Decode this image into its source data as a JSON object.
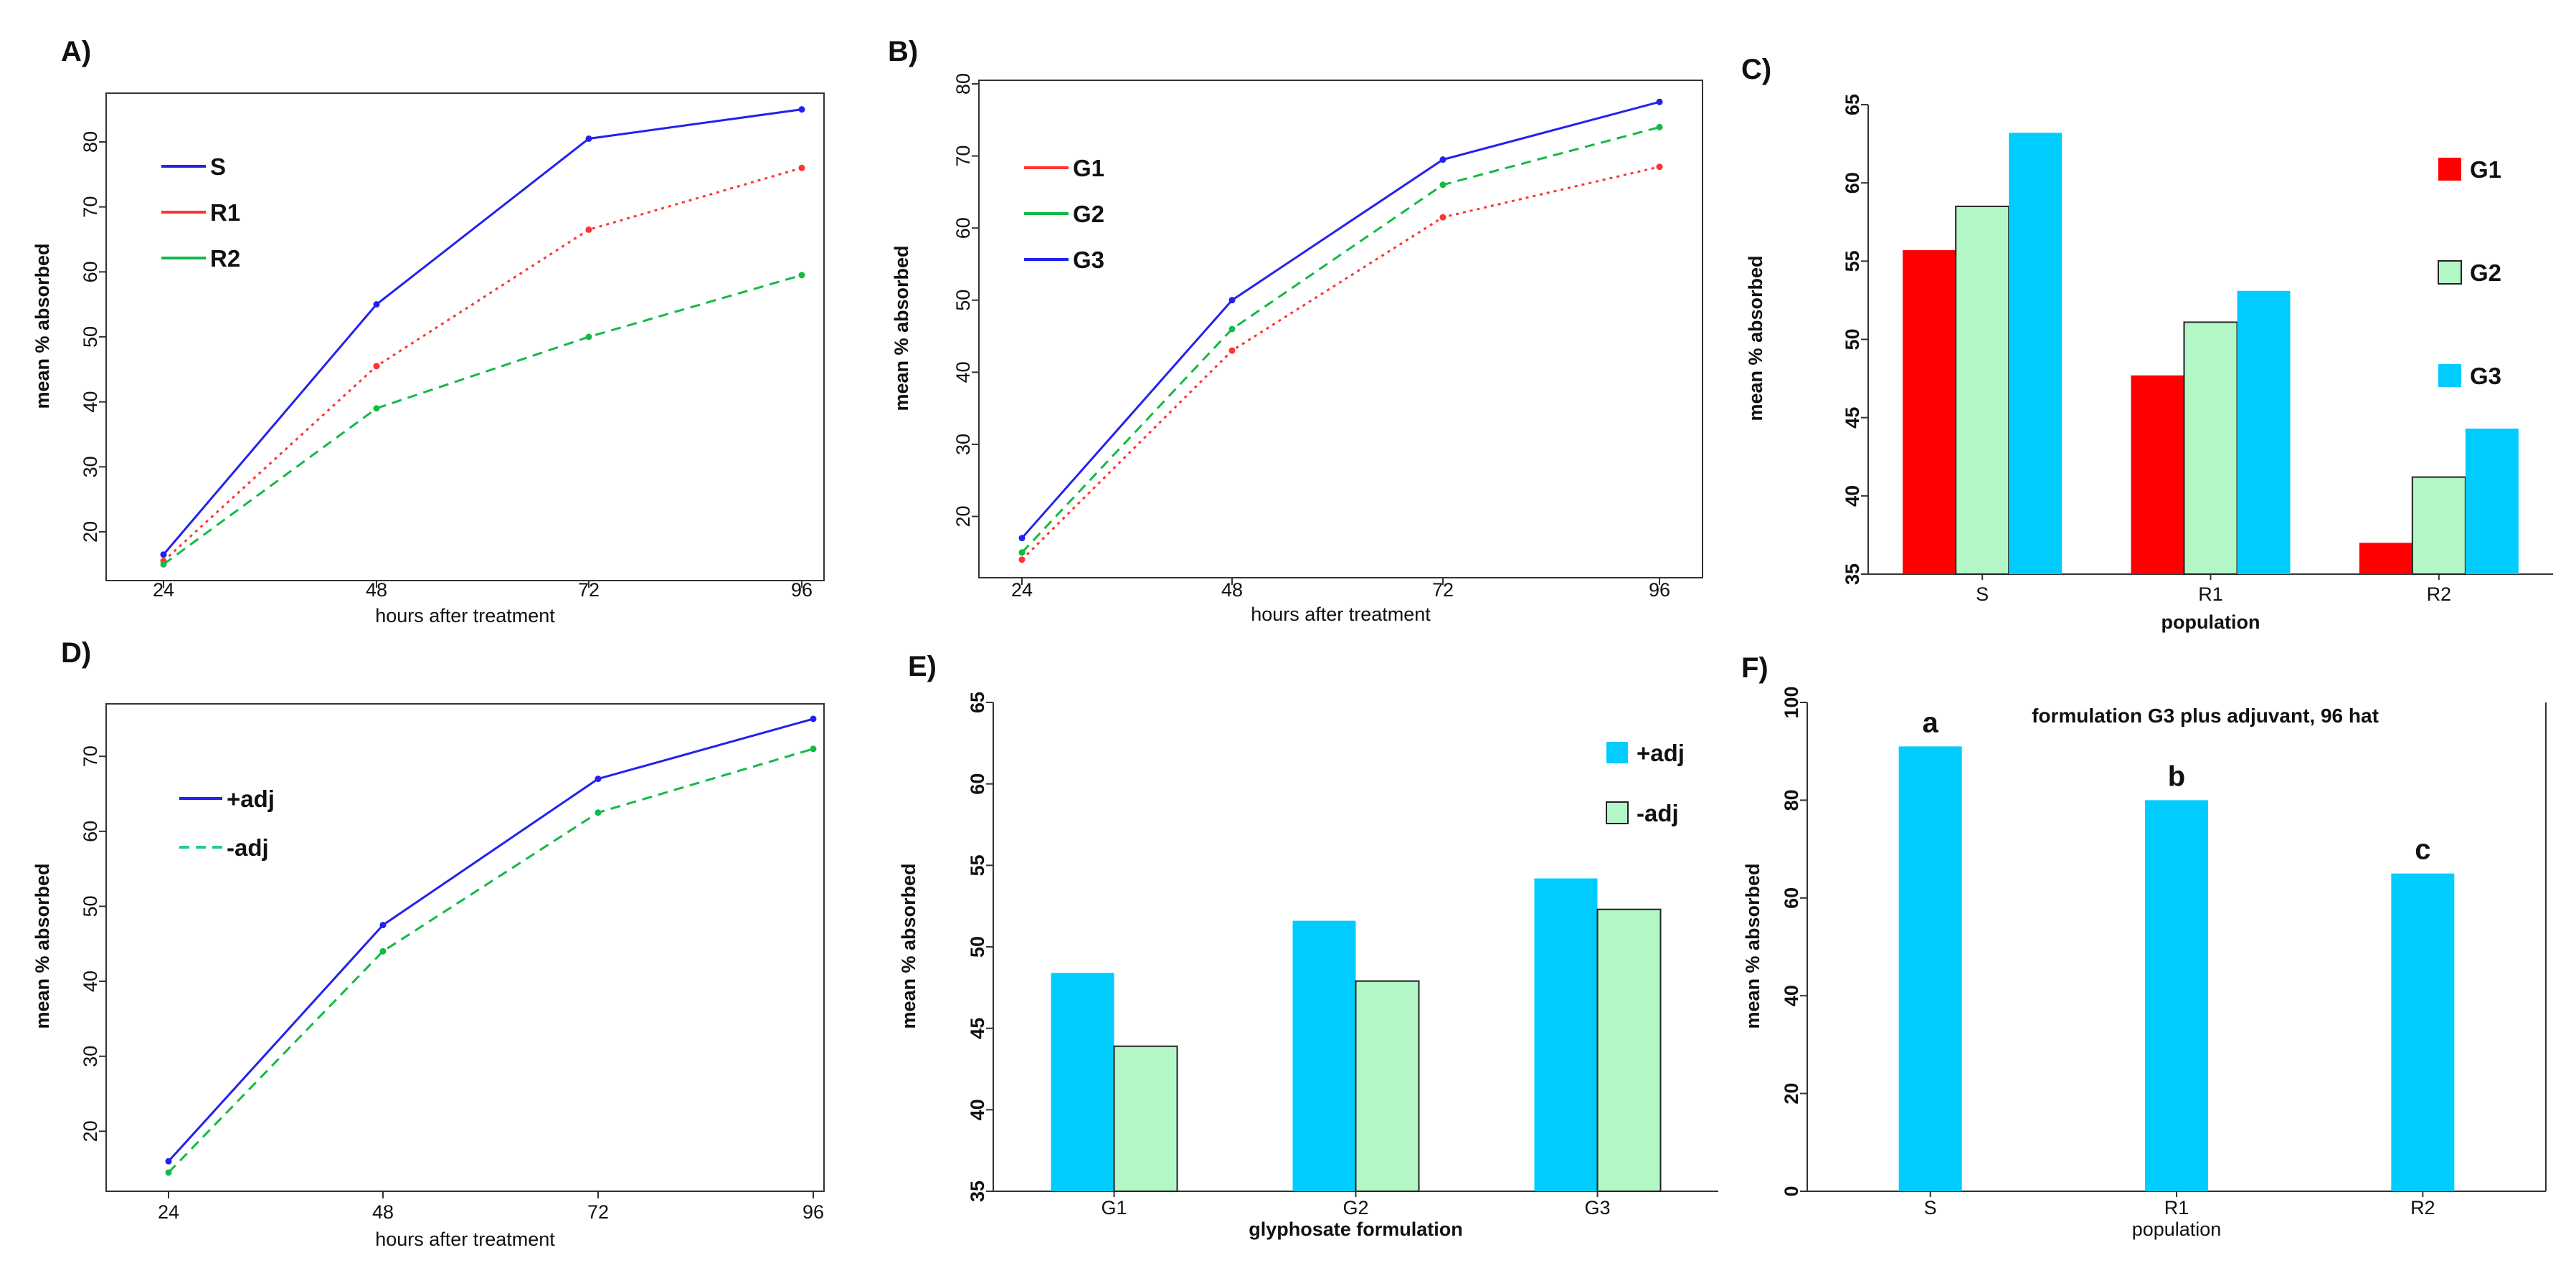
{
  "colors": {
    "blue_line": "#2222ee",
    "red_line": "#ff3333",
    "green_line": "#11bb44",
    "bar_red": "#ff0000",
    "bar_lightgreen": "#b3f7c7",
    "bar_cyan": "#00ccff"
  },
  "chart_data": [
    {
      "panel": "A)",
      "type": "line",
      "xlabel": "hours after treatment",
      "ylabel": "mean % absorbed",
      "x": [
        24,
        48,
        72,
        96
      ],
      "xticks": [
        "24",
        "48",
        "72",
        "96"
      ],
      "yticks": [
        20,
        30,
        40,
        50,
        60,
        70,
        80
      ],
      "ylim": [
        12.5,
        87.5
      ],
      "legend": "top-left",
      "series": [
        {
          "name": "S",
          "values": [
            16.5,
            55,
            80.5,
            85
          ],
          "color": "#2222ee",
          "style": "solid"
        },
        {
          "name": "R1",
          "values": [
            15.5,
            45.5,
            66.5,
            76
          ],
          "color": "#ff3333",
          "style": "dotted"
        },
        {
          "name": "R2",
          "values": [
            15,
            39,
            50,
            59.5
          ],
          "color": "#11bb44",
          "style": "dashed"
        }
      ]
    },
    {
      "panel": "B)",
      "type": "line",
      "xlabel": "hours after treatment",
      "ylabel": "mean % absorbed",
      "x": [
        24,
        48,
        72,
        96
      ],
      "xticks": [
        "24",
        "48",
        "72",
        "96"
      ],
      "yticks": [
        20,
        30,
        40,
        50,
        60,
        70,
        80
      ],
      "ylim": [
        11.5,
        80.5
      ],
      "legend": "top-left",
      "series": [
        {
          "name": "G1",
          "values": [
            14,
            43,
            61.5,
            68.5
          ],
          "color": "#ff3333",
          "style": "dotted"
        },
        {
          "name": "G2",
          "values": [
            15,
            46,
            66,
            74
          ],
          "color": "#11bb44",
          "style": "dashed"
        },
        {
          "name": "G3",
          "values": [
            17,
            50,
            69.5,
            77.5
          ],
          "color": "#2222ee",
          "style": "solid"
        }
      ]
    },
    {
      "panel": "C)",
      "type": "bar",
      "xlabel": "population",
      "ylabel": "mean % absorbed",
      "categories": [
        "S",
        "R1",
        "R2"
      ],
      "yticks": [
        35,
        40,
        45,
        50,
        55,
        60,
        65
      ],
      "ylim": [
        35,
        65
      ],
      "legend": "right",
      "series": [
        {
          "name": "G1",
          "values": [
            55.7,
            47.7,
            37
          ],
          "color": "#ff0000"
        },
        {
          "name": "G2",
          "values": [
            58.5,
            51.1,
            41.2
          ],
          "color": "#b3f7c7"
        },
        {
          "name": "G3",
          "values": [
            63.2,
            53.1,
            44.3
          ],
          "color": "#00ccff"
        }
      ]
    },
    {
      "panel": "D)",
      "type": "line",
      "xlabel": "hours after treatment",
      "ylabel": "mean % absorbed",
      "x": [
        24,
        48,
        72,
        96
      ],
      "xticks": [
        "24",
        "48",
        "72",
        "96"
      ],
      "yticks": [
        20,
        30,
        40,
        50,
        60,
        70
      ],
      "ylim": [
        12,
        77
      ],
      "legend": "top-left",
      "series": [
        {
          "name": "+adj",
          "values": [
            16,
            47.5,
            67,
            75
          ],
          "color": "#2222ee",
          "style": "solid"
        },
        {
          "name": "-adj",
          "values": [
            14.5,
            44,
            62.5,
            71
          ],
          "color": "#11bb44",
          "style": "dashed"
        }
      ]
    },
    {
      "panel": "E)",
      "type": "bar",
      "xlabel": "glyphosate formulation",
      "ylabel": "mean % absorbed",
      "categories": [
        "G1",
        "G2",
        "G3"
      ],
      "yticks": [
        35,
        40,
        45,
        50,
        55,
        60,
        65
      ],
      "ylim": [
        35,
        65
      ],
      "legend": "top-right",
      "series": [
        {
          "name": "+adj",
          "values": [
            48.4,
            51.6,
            54.2
          ],
          "color": "#00ccff"
        },
        {
          "name": "-adj",
          "values": [
            43.9,
            47.9,
            52.3
          ],
          "color": "#b3f7c7"
        }
      ]
    },
    {
      "panel": "F)",
      "type": "bar",
      "title": "formulation G3 plus adjuvant, 96 hat",
      "xlabel": "population",
      "ylabel": "mean % absorbed",
      "categories": [
        "S",
        "R1",
        "R2"
      ],
      "yticks": [
        0,
        20,
        40,
        60,
        80,
        100
      ],
      "ylim": [
        0,
        100
      ],
      "series": [
        {
          "name": "G3 + adjuvant",
          "values": [
            91,
            80,
            65
          ],
          "color": "#00ccff"
        }
      ],
      "annotations": [
        "a",
        "b",
        "c"
      ]
    }
  ]
}
